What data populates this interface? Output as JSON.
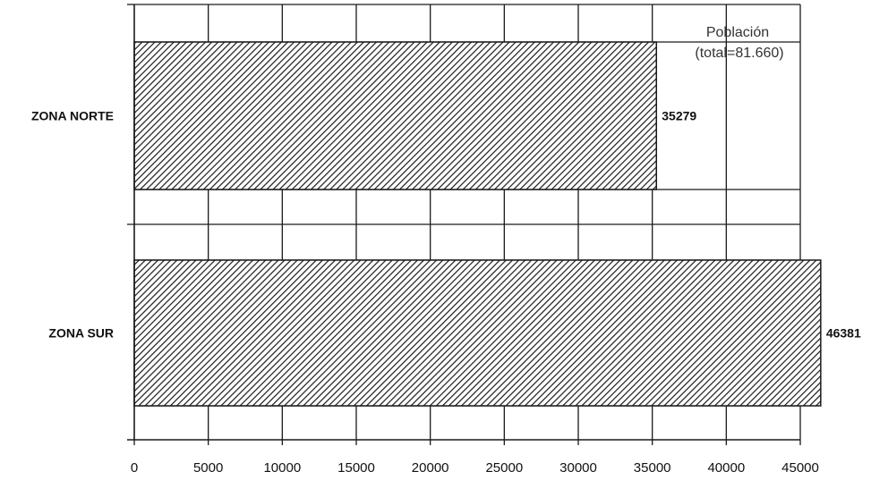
{
  "chart_data": {
    "type": "bar",
    "orientation": "horizontal",
    "categories": [
      "ZONA NORTE",
      "ZONA SUR"
    ],
    "values": [
      35279,
      46381
    ],
    "data_labels": [
      "35279",
      "46381"
    ],
    "xlim": [
      0,
      45000
    ],
    "xticks": [
      0,
      5000,
      10000,
      15000,
      20000,
      25000,
      30000,
      35000,
      40000,
      45000
    ],
    "xtick_labels": [
      "0",
      "5000",
      "10000",
      "15000",
      "20000",
      "25000",
      "30000",
      "35000",
      "40000",
      "45000"
    ],
    "grid": true,
    "bar_fill": "diagonal-hatch",
    "legend": {
      "line1": "Población",
      "line2": "(total=81.660)",
      "placement": "top-right"
    },
    "title": "",
    "xlabel": "",
    "ylabel": ""
  },
  "colors": {
    "line": "#1a1a1a",
    "hatch": "#1a1a1a",
    "background": "#ffffff"
  }
}
